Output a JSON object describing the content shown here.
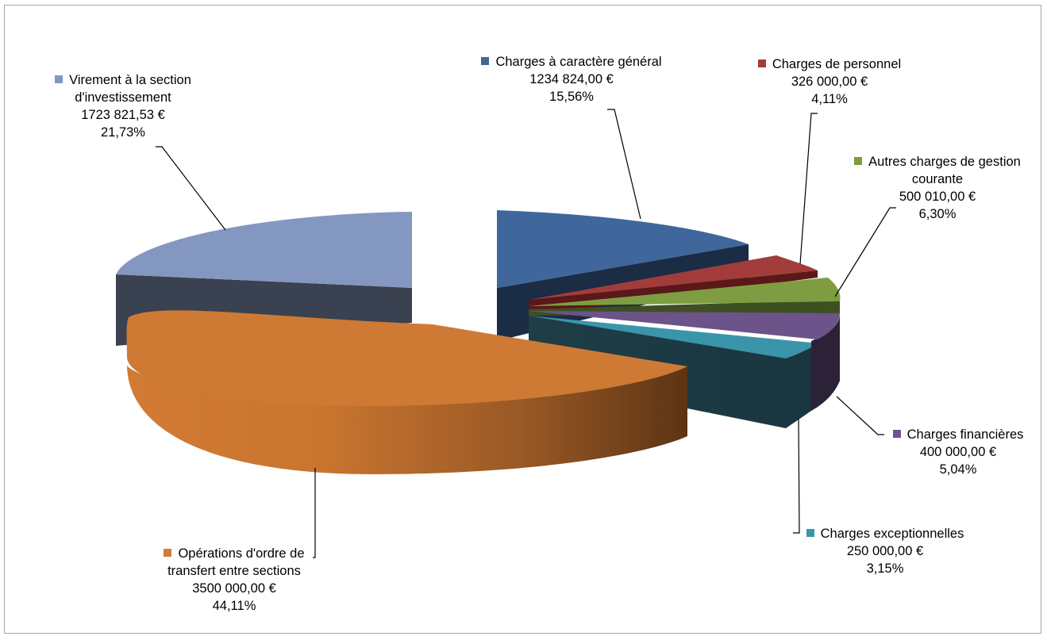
{
  "chart_data": {
    "type": "pie",
    "style": "3d-exploded",
    "series": [
      {
        "name": "Opérations d'ordre de transfert entre sections",
        "value": 3500000.0,
        "value_label": "3500 000,00 €",
        "percent": 44.11,
        "percent_label": "44,11%",
        "color": "#D27B35"
      },
      {
        "name": "Virement à la section d'investissement",
        "value": 1723821.53,
        "value_label": "1723 821,53 €",
        "percent": 21.73,
        "percent_label": "21,73%",
        "color": "#8497C0"
      },
      {
        "name": "Charges à caractère général",
        "value": 1234824.0,
        "value_label": "1234 824,00 €",
        "percent": 15.56,
        "percent_label": "15,56%",
        "color": "#3F679C"
      },
      {
        "name": "Charges de personnel",
        "value": 326000.0,
        "value_label": "326 000,00 €",
        "percent": 4.11,
        "percent_label": "4,11%",
        "color": "#A23C3A"
      },
      {
        "name": "Autres charges de gestion courante",
        "value": 500010.0,
        "value_label": "500 010,00 €",
        "percent": 6.3,
        "percent_label": "6,30%",
        "color": "#7E9D43"
      },
      {
        "name": "Charges financières",
        "value": 400000.0,
        "value_label": "400 000,00 €",
        "percent": 5.04,
        "percent_label": "5,04%",
        "color": "#6C5389"
      },
      {
        "name": "Charges exceptionnelles",
        "value": 250000.0,
        "value_label": "250 000,00 €",
        "percent": 3.15,
        "percent_label": "3,15%",
        "color": "#3B95AA"
      }
    ],
    "legend": "none",
    "data_labels": "outside-with-leader-lines"
  },
  "labels": {
    "virement": {
      "line1": "Virement à la section",
      "line2": "d'investissement",
      "value": "1723 821,53 €",
      "pct": "21,73%"
    },
    "caractere": {
      "line1": "Charges à caractère général",
      "value": "1234 824,00 €",
      "pct": "15,56%"
    },
    "personnel": {
      "line1": "Charges de personnel",
      "value": "326 000,00 €",
      "pct": "4,11%"
    },
    "autres": {
      "line1": "Autres charges de gestion",
      "line2": "courante",
      "value": "500 010,00 €",
      "pct": "6,30%"
    },
    "financieres": {
      "line1": "Charges financières",
      "value": "400 000,00 €",
      "pct": "5,04%"
    },
    "exceptionnelles": {
      "line1": "Charges exceptionnelles",
      "value": "250 000,00 €",
      "pct": "3,15%"
    },
    "operations": {
      "line1": "Opérations d'ordre de",
      "line2": "transfert entre sections",
      "value": "3500 000,00 €",
      "pct": "44,11%"
    }
  }
}
